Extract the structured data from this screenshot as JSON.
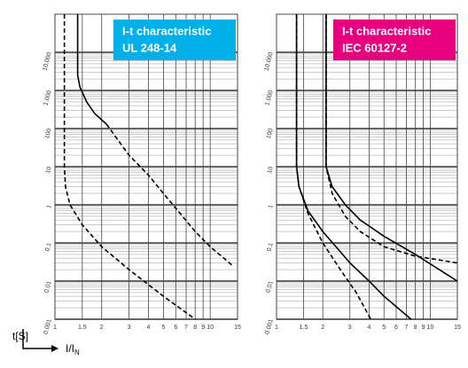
{
  "chart_data": [
    {
      "type": "line",
      "title": "I-t characteristic",
      "subtitle": "UL 248-14",
      "title_color": "#00aee8",
      "log_x": true,
      "log_y": true,
      "grid": true,
      "xlim": [
        1,
        15
      ],
      "ylim": [
        0.001,
        100000
      ],
      "xticks": [
        1,
        1.5,
        2,
        3,
        4,
        5,
        6,
        7,
        8,
        9,
        10,
        15
      ],
      "yticks": [
        0.001,
        0.01,
        0.1,
        1,
        10,
        100,
        {
          "value": 1000,
          "label": "1.000"
        },
        {
          "value": 10000,
          "label": "10.000"
        }
      ],
      "series": [
        {
          "color": "#000000",
          "dash": true,
          "x": [
            1.15,
            1.15,
            1.17,
            1.25,
            1.5,
            2,
            3,
            5,
            8
          ],
          "values": [
            100000,
            10,
            3,
            1,
            0.3,
            0.08,
            0.02,
            0.004,
            0.001
          ]
        },
        {
          "color": "#000000",
          "dash": false,
          "x": [
            1.4,
            1.4,
            1.45,
            1.6,
            1.8,
            2.15
          ],
          "values": [
            100000,
            2500,
            1200,
            500,
            250,
            130
          ]
        },
        {
          "color": "#000000",
          "dash": true,
          "x": [
            2.15,
            3,
            4,
            5,
            8,
            10,
            14
          ],
          "values": [
            130,
            20,
            6,
            2,
            0.2,
            0.08,
            0.025
          ]
        }
      ]
    },
    {
      "type": "line",
      "title": "I-t characteristic",
      "subtitle": "IEC 60127-2",
      "title_color": "#e6007e",
      "log_x": true,
      "log_y": true,
      "grid": true,
      "xlim": [
        1,
        15
      ],
      "ylim": [
        0.001,
        100000
      ],
      "xticks": [
        1,
        1.5,
        2,
        3,
        4,
        5,
        6,
        7,
        8,
        9,
        10,
        15
      ],
      "yticks": [
        0.001,
        0.01,
        0.1,
        1,
        10,
        100,
        {
          "value": 1000,
          "label": "1.000"
        },
        {
          "value": 10000,
          "label": "10.000"
        }
      ],
      "series": [
        {
          "color": "#000000",
          "dash": false,
          "x": [
            1.35,
            1.35,
            1.4,
            1.6,
            2,
            3,
            4,
            5,
            7.5
          ],
          "values": [
            100000,
            10,
            3,
            0.7,
            0.2,
            0.03,
            0.01,
            0.004,
            0.001
          ]
        },
        {
          "color": "#000000",
          "dash": true,
          "x": [
            1.35,
            1.35,
            1.4,
            1.6,
            2,
            2.6,
            3.3,
            4.1
          ],
          "values": [
            100000,
            10,
            3,
            0.6,
            0.1,
            0.02,
            0.005,
            0.001
          ]
        },
        {
          "color": "#000000",
          "dash": false,
          "x": [
            2.1,
            2.1,
            2.3,
            2.8,
            3.5,
            5,
            8,
            15
          ],
          "values": [
            100000,
            10,
            3,
            1,
            0.4,
            0.15,
            0.05,
            0.01
          ]
        },
        {
          "color": "#000000",
          "dash": true,
          "x": [
            2.1,
            2.1,
            2.3,
            2.8,
            3.5,
            5,
            8,
            15
          ],
          "values": [
            100000,
            10,
            2,
            0.5,
            0.2,
            0.08,
            0.045,
            0.03
          ]
        }
      ]
    }
  ],
  "axis_labels": {
    "y": "t[S]",
    "x": "I/I",
    "x_sub": "N"
  }
}
